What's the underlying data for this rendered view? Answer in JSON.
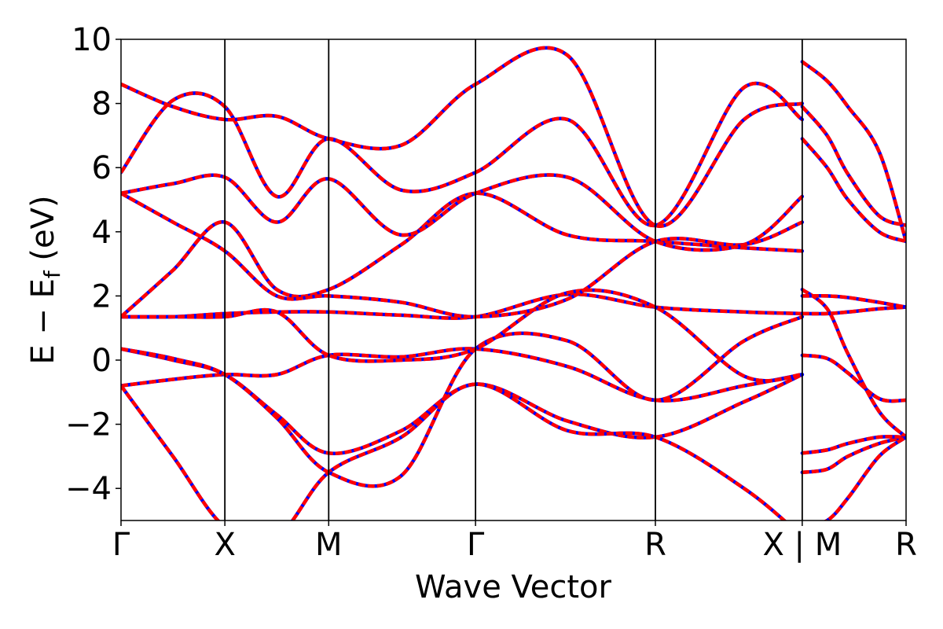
{
  "chart_data": {
    "type": "line",
    "title": "",
    "xlabel": "Wave Vector",
    "ylabel": {
      "prefix": "E − E",
      "subscript": "f",
      "suffix": " (eV)"
    },
    "ylim": [
      -5,
      10
    ],
    "yticks": [
      -4,
      -2,
      0,
      2,
      4,
      6,
      8,
      10
    ],
    "ytick_labels": [
      "−4",
      "−2",
      "0",
      "2",
      "4",
      "6",
      "8",
      "10"
    ],
    "kpath": [
      {
        "label": "Γ",
        "k": 0.0
      },
      {
        "label": "X",
        "k": 1.0
      },
      {
        "label": "M",
        "k": 2.0
      },
      {
        "label": "Γ",
        "k": 3.414
      },
      {
        "label": "R",
        "k": 5.146
      },
      {
        "label": "X | M",
        "k": 6.56
      },
      {
        "label": "R",
        "k": 7.56
      }
    ],
    "grid": false,
    "legend": "none",
    "series_colors": {
      "reference": "#0000ff",
      "overlay": "#ff0000"
    },
    "bands": [
      {
        "k": [
          0,
          0.5,
          1,
          1.5,
          2,
          2.7,
          3.414,
          4.3,
          5.146,
          6.0,
          6.56
        ],
        "E": [
          -0.8,
          -0.6,
          -0.45,
          -0.45,
          0.15,
          0.1,
          0.35,
          -0.2,
          -1.25,
          -0.8,
          -0.45
        ]
      },
      {
        "k": [
          0,
          0.5,
          1,
          1.5,
          2,
          2.7,
          3.414,
          4.3,
          5.146,
          6.0,
          6.56
        ],
        "E": [
          0.35,
          0.0,
          -0.45,
          -1.7,
          -2.9,
          -2.2,
          -0.75,
          -1.9,
          -2.4,
          -1.3,
          -0.45
        ]
      },
      {
        "k": [
          0,
          0.5,
          1,
          1.5,
          2,
          2.7,
          3.414,
          4.3,
          5.146,
          6.0,
          6.56
        ],
        "E": [
          -0.8,
          -3.0,
          -5.2,
          -5.5,
          -3.5,
          -2.4,
          -0.75,
          -2.2,
          -2.4,
          -4.0,
          -5.5
        ]
      },
      {
        "k": [
          0,
          0.5,
          1,
          1.5,
          2,
          2.7,
          3.414,
          4.3,
          5.146,
          6.0,
          6.56
        ],
        "E": [
          0.35,
          0.05,
          -0.45,
          -1.8,
          -3.5,
          -3.6,
          0.35,
          0.6,
          -1.25,
          0.6,
          1.35
        ]
      },
      {
        "k": [
          0,
          0.5,
          1,
          1.5,
          2,
          2.7,
          3.414,
          4.3,
          5.146,
          6.0,
          6.56
        ],
        "E": [
          1.35,
          1.35,
          1.45,
          1.5,
          1.5,
          1.4,
          1.35,
          2.05,
          1.65,
          1.5,
          1.45
        ]
      },
      {
        "k": [
          0,
          0.5,
          1,
          1.5,
          2,
          2.7,
          3.414,
          4.3,
          5.146,
          6.0,
          6.56
        ],
        "E": [
          1.35,
          1.35,
          1.35,
          1.5,
          0.15,
          0.0,
          0.35,
          2.1,
          1.65,
          -0.5,
          -0.45
        ]
      },
      {
        "k": [
          0,
          0.5,
          1,
          1.5,
          2,
          2.7,
          3.414,
          4.3,
          5.146,
          6.0,
          6.56
        ],
        "E": [
          1.35,
          2.8,
          4.3,
          2.2,
          2.2,
          3.6,
          5.2,
          3.9,
          3.7,
          3.5,
          3.4
        ]
      },
      {
        "k": [
          0,
          0.5,
          1,
          1.5,
          2,
          2.7,
          3.414,
          4.3,
          5.146,
          6.0,
          6.56
        ],
        "E": [
          5.2,
          4.3,
          3.4,
          2.0,
          2.0,
          1.8,
          1.35,
          1.9,
          3.7,
          3.6,
          4.3
        ]
      },
      {
        "k": [
          0,
          0.5,
          1,
          1.5,
          2,
          2.7,
          3.414,
          4.3,
          5.146,
          6.0,
          6.56
        ],
        "E": [
          5.2,
          5.5,
          5.7,
          4.3,
          5.65,
          3.9,
          5.2,
          5.7,
          3.7,
          3.6,
          5.1
        ]
      },
      {
        "k": [
          0,
          0.5,
          1,
          1.5,
          2,
          2.7,
          3.414,
          4.3,
          5.146,
          6.0,
          6.56
        ],
        "E": [
          5.85,
          8.1,
          7.9,
          5.1,
          6.9,
          5.3,
          5.85,
          7.5,
          4.2,
          8.5,
          7.5
        ]
      },
      {
        "k": [
          0,
          0.5,
          1,
          1.5,
          2,
          2.7,
          3.414,
          4.3,
          5.146,
          6.0,
          6.56
        ],
        "E": [
          8.6,
          7.9,
          7.5,
          7.6,
          6.9,
          6.7,
          8.6,
          9.5,
          4.2,
          7.5,
          8.0
        ]
      }
    ],
    "bands_segment2": [
      {
        "k": [
          6.56,
          6.8,
          7.0,
          7.3,
          7.56
        ],
        "E": [
          -3.5,
          -3.4,
          -3.0,
          -2.6,
          -2.4
        ]
      },
      {
        "k": [
          6.56,
          6.8,
          7.0,
          7.3,
          7.56
        ],
        "E": [
          -2.9,
          -2.8,
          -2.6,
          -2.4,
          -2.4
        ]
      },
      {
        "k": [
          6.56,
          6.8,
          7.0,
          7.3,
          7.56
        ],
        "E": [
          0.15,
          0.05,
          -0.4,
          -1.2,
          -1.25
        ]
      },
      {
        "k": [
          6.56,
          6.8,
          7.0,
          7.3,
          7.56
        ],
        "E": [
          2.2,
          1.6,
          0.2,
          -1.6,
          -2.4
        ]
      },
      {
        "k": [
          6.56,
          6.8,
          7.0,
          7.3,
          7.56
        ],
        "E": [
          1.45,
          1.45,
          1.5,
          1.6,
          1.65
        ]
      },
      {
        "k": [
          6.56,
          6.8,
          7.0,
          7.3,
          7.56
        ],
        "E": [
          2.0,
          2.0,
          1.95,
          1.8,
          1.65
        ]
      },
      {
        "k": [
          6.56,
          6.8,
          7.0,
          7.3,
          7.56
        ],
        "E": [
          6.9,
          6.0,
          5.0,
          4.0,
          3.7
        ]
      },
      {
        "k": [
          6.56,
          6.8,
          7.0,
          7.3,
          7.56
        ],
        "E": [
          7.9,
          7.0,
          5.8,
          4.5,
          4.2
        ]
      },
      {
        "k": [
          6.56,
          6.8,
          7.0,
          7.3,
          7.56
        ],
        "E": [
          9.3,
          8.7,
          7.9,
          6.5,
          3.7
        ]
      },
      {
        "k": [
          6.56,
          6.8,
          7.0,
          7.3,
          7.56
        ],
        "E": [
          -5.2,
          -5.0,
          -4.3,
          -3.0,
          -2.4
        ]
      }
    ]
  }
}
